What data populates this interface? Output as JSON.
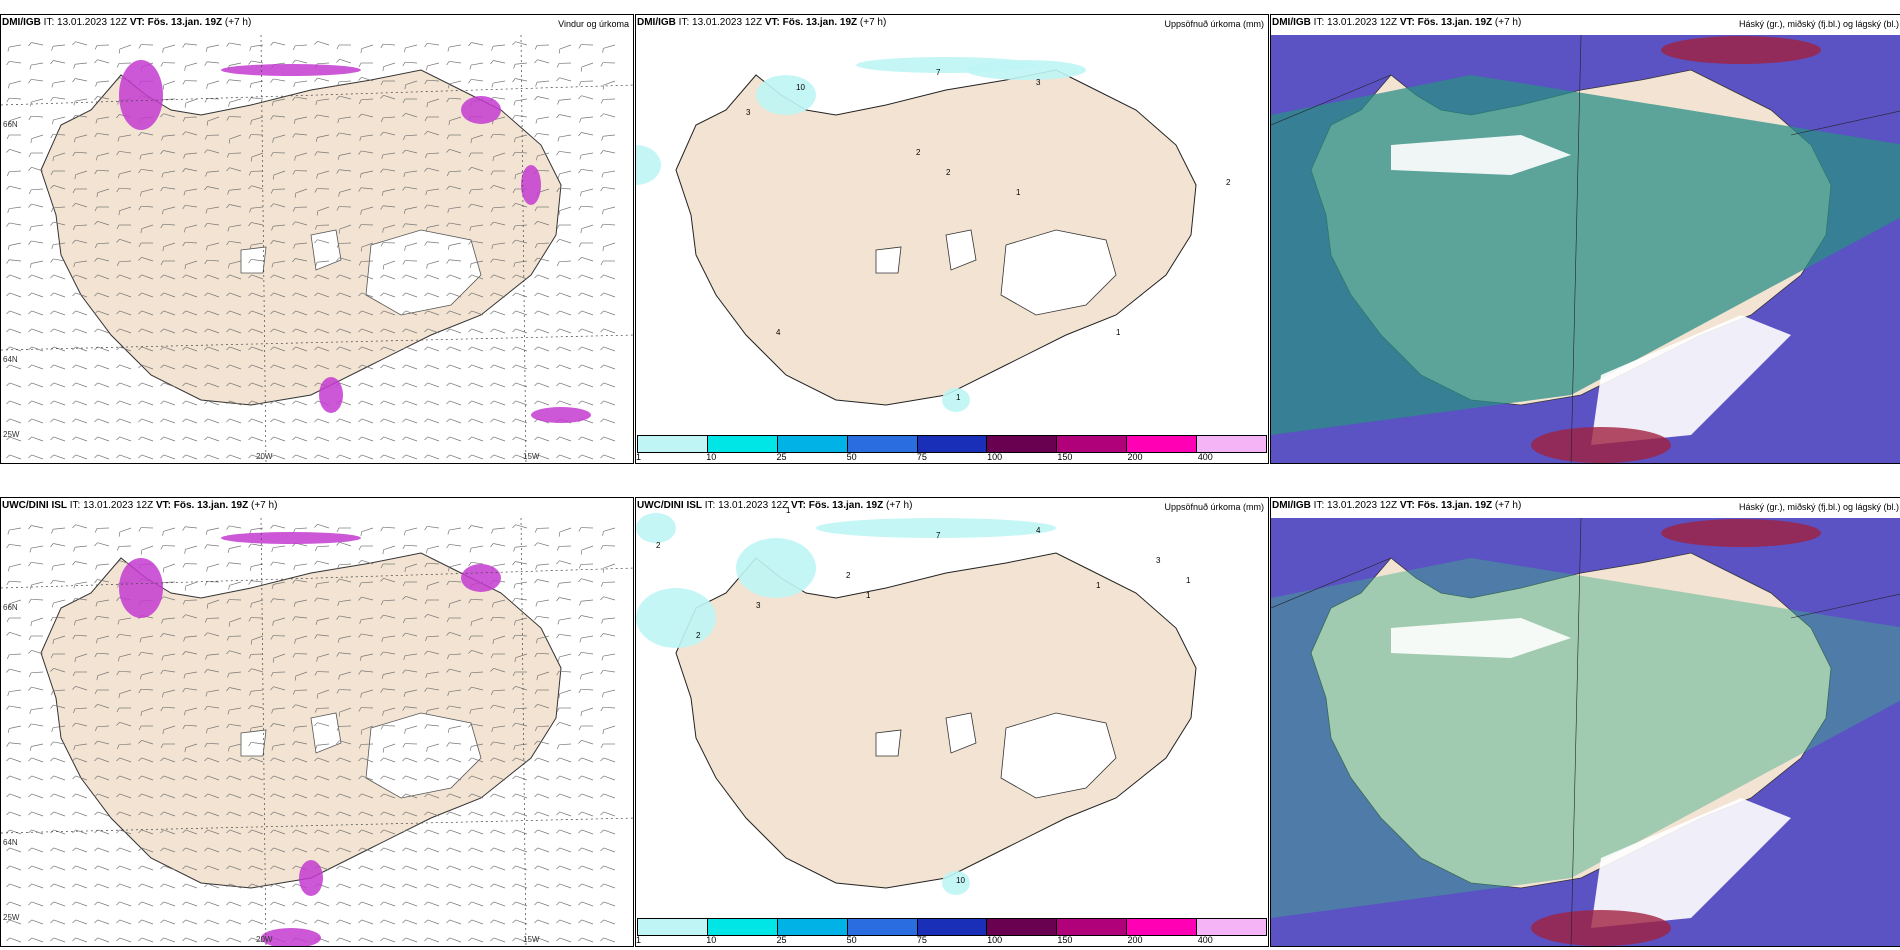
{
  "rows": [
    {
      "model": "DMI/IGB",
      "panels": [
        {
          "model": "DMI/IGB",
          "it": "IT: 13.01.2023 12Z",
          "vt_label": "VT:",
          "vt": "Fös. 13.jan. 19Z",
          "lead": "(+7 h)",
          "right": "Vindur og úrkoma",
          "kind": "wind"
        },
        {
          "model": "DMI/IGB",
          "it": "IT: 13.01.2023 12Z",
          "vt_label": "VT:",
          "vt": "Fös. 13.jan. 19Z",
          "lead": "(+7 h)",
          "right": "Uppsöfnuð úrkoma (mm)",
          "kind": "precip"
        },
        {
          "model": "DMI/IGB",
          "it": "IT: 13.01.2023 12Z",
          "vt_label": "VT:",
          "vt": "Fös. 13.jan. 19Z",
          "lead": "(+7 h)",
          "right": "Háský (gr.), miðský (fj.bl.) og lágský (bl.)",
          "kind": "cloud"
        }
      ]
    },
    {
      "model": "UWC/DINI ISL",
      "panels": [
        {
          "model": "UWC/DINI ISL",
          "it": "IT: 13.01.2023 12Z",
          "vt_label": "VT:",
          "vt": "Fös. 13.jan. 19Z",
          "lead": "(+7 h)",
          "right": "",
          "kind": "wind"
        },
        {
          "model": "UWC/DINI ISL",
          "it": "IT: 13.01.2023 12Z",
          "vt_label": "VT:",
          "vt": "Fös. 13.jan. 19Z",
          "lead": "(+7 h)",
          "right": "Uppsöfnuð úrkoma (mm)",
          "kind": "precip"
        },
        {
          "model": "DMI/IGB",
          "it": "IT: 13.01.2023 12Z",
          "vt_label": "VT:",
          "vt": "Fös. 13.jan. 19Z",
          "lead": "(+7 h)",
          "right": "Háský (gr.), miðský (fj.bl.) og lágský (bl.)",
          "kind": "cloud"
        }
      ]
    }
  ],
  "axis_labels": {
    "lon20": "20W",
    "lon15": "15W",
    "lat66": "66N",
    "lat64": "64N",
    "lon25": "25W"
  },
  "colorbar": {
    "colors": [
      "#bff5f5",
      "#00e5e5",
      "#00b2e6",
      "#2a6de0",
      "#1a2fb8",
      "#6a0050",
      "#b0007a",
      "#ff00b4",
      "#f5b4f5"
    ],
    "labels": [
      "1",
      "10",
      "25",
      "50",
      "75",
      "100",
      "150",
      "200",
      "400"
    ]
  },
  "precip_values_top": [
    "7",
    "3",
    "10",
    "3",
    "2",
    "2",
    "1",
    "2",
    "1",
    "4",
    "1"
  ],
  "precip_values_bottom": [
    "1",
    "7",
    "4",
    "2",
    "1",
    "2",
    "1",
    "1",
    "3",
    "3",
    "2",
    "10"
  ],
  "colors": {
    "land": "#f2e3d2",
    "snow": "#ffffff",
    "sea_cloud": "#5b52c4",
    "teal": "#2a8f86",
    "green": "#3fae88",
    "magenta": "#c43bd0"
  }
}
